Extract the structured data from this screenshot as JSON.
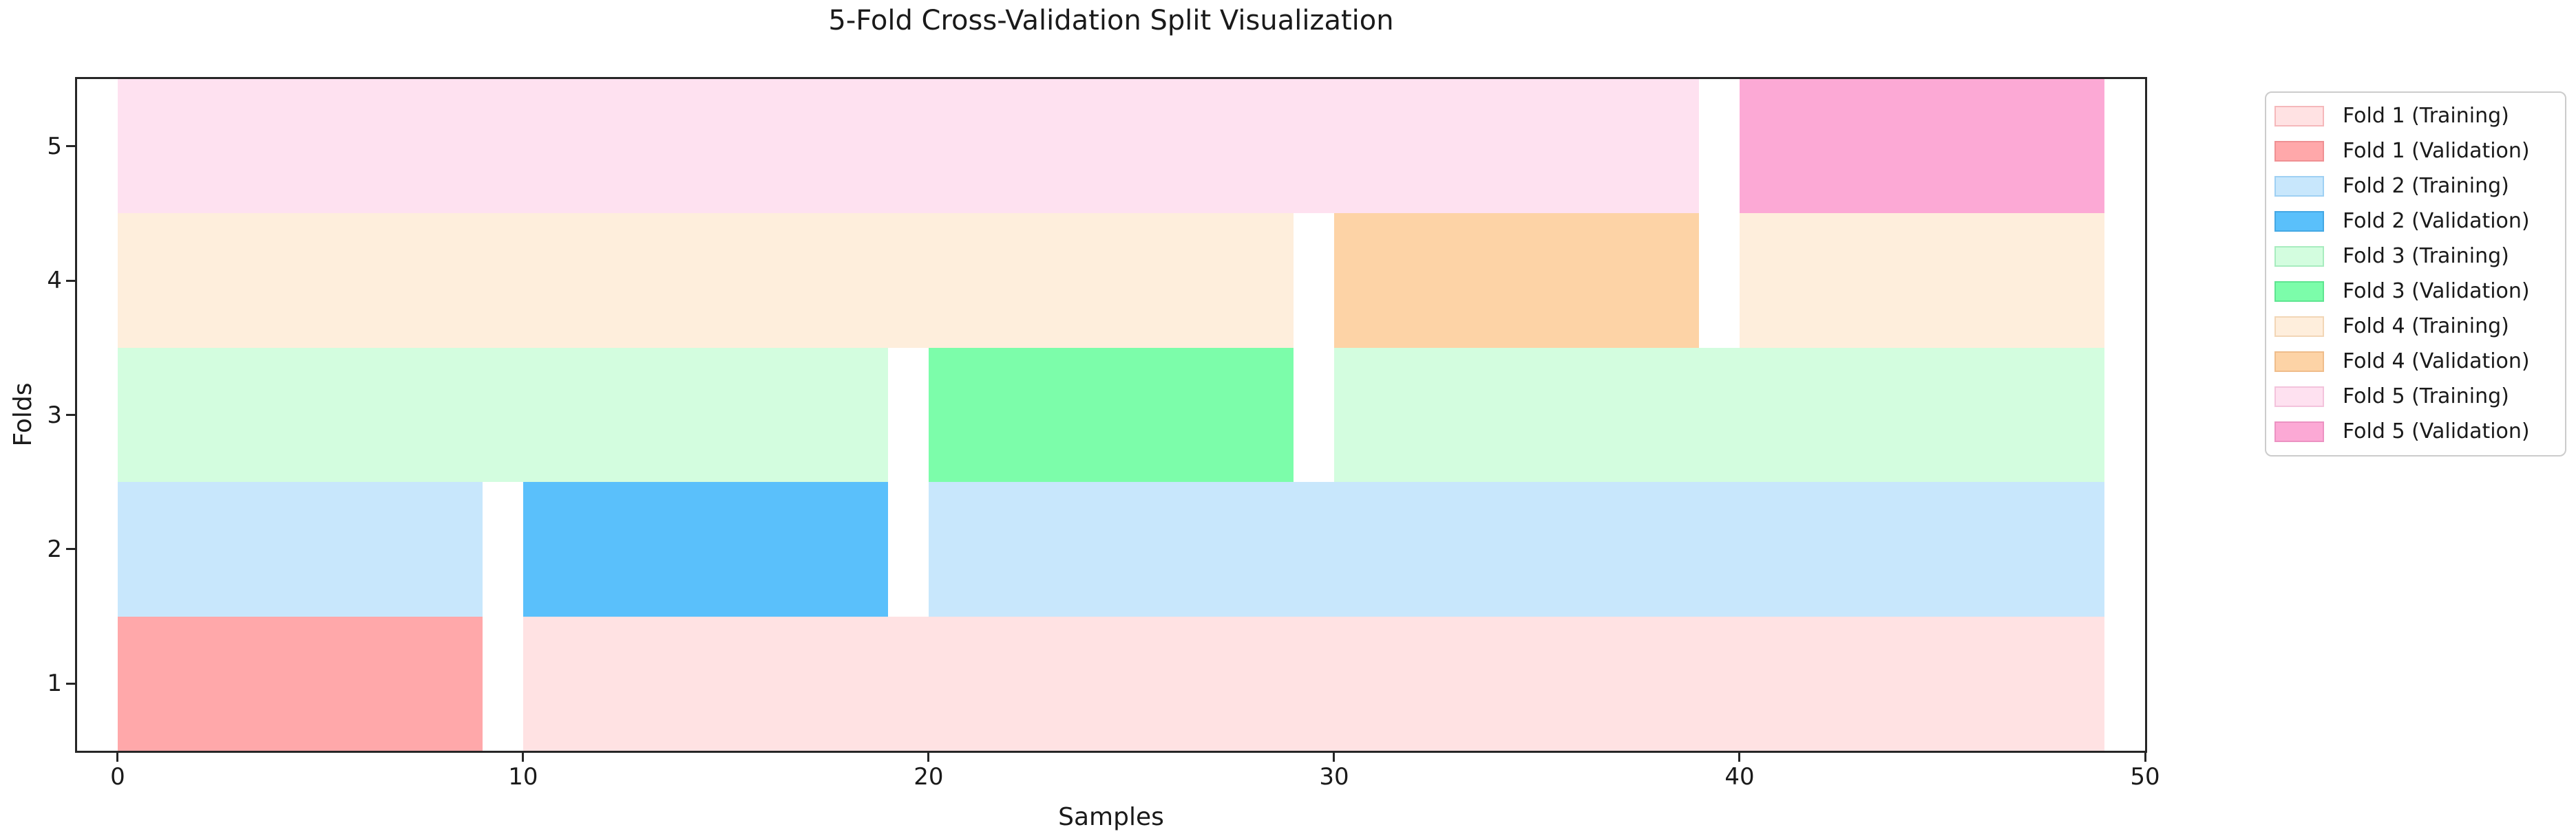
{
  "chart_data": {
    "type": "bar",
    "variant": "horizontal-cross-validation-split",
    "title": "5-Fold Cross-Validation Split Visualization",
    "xlabel": "Samples",
    "ylabel": "Folds",
    "n_samples": 50,
    "n_folds": 5,
    "fold_size": 10,
    "xlim": [
      -1,
      50
    ],
    "ylim": [
      0.5,
      5.5
    ],
    "x_ticks": [
      0,
      10,
      20,
      30,
      40,
      50
    ],
    "y_ticks": [
      1,
      2,
      3,
      4,
      5
    ],
    "grid": false,
    "background": "#ffffff",
    "axis_color": "#262626",
    "text_color": "#1a1a1a",
    "legend_position": "outside-right-top",
    "legend_border_color": "#cccccc",
    "folds": [
      {
        "fold": 1,
        "validation_samples": [
          0,
          9
        ],
        "train_color": "#FFE2E3",
        "val_color": "#FFA8AA",
        "segments": [
          {
            "role": "validation",
            "start": 0,
            "end": 9
          },
          {
            "role": "training",
            "start": 10,
            "end": 49
          }
        ]
      },
      {
        "fold": 2,
        "validation_samples": [
          10,
          19
        ],
        "train_color": "#C8E7FC",
        "val_color": "#5AC0FB",
        "segments": [
          {
            "role": "training",
            "start": 0,
            "end": 9
          },
          {
            "role": "validation",
            "start": 10,
            "end": 19
          },
          {
            "role": "training",
            "start": 20,
            "end": 49
          }
        ]
      },
      {
        "fold": 3,
        "validation_samples": [
          20,
          29
        ],
        "train_color": "#D3FDDF",
        "val_color": "#7CFDAA",
        "segments": [
          {
            "role": "training",
            "start": 0,
            "end": 19
          },
          {
            "role": "validation",
            "start": 20,
            "end": 29
          },
          {
            "role": "training",
            "start": 30,
            "end": 49
          }
        ]
      },
      {
        "fold": 4,
        "validation_samples": [
          30,
          39
        ],
        "train_color": "#FEEEDC",
        "val_color": "#FDD3A6",
        "segments": [
          {
            "role": "training",
            "start": 0,
            "end": 29
          },
          {
            "role": "validation",
            "start": 30,
            "end": 39
          },
          {
            "role": "training",
            "start": 40,
            "end": 49
          }
        ]
      },
      {
        "fold": 5,
        "validation_samples": [
          40,
          49
        ],
        "train_color": "#FEE1F0",
        "val_color": "#FCA9D5",
        "segments": [
          {
            "role": "training",
            "start": 0,
            "end": 39
          },
          {
            "role": "validation",
            "start": 40,
            "end": 49
          }
        ]
      }
    ],
    "legend": [
      {
        "label": "Fold 1 (Training)",
        "color": "#FFE2E3",
        "edge": "#F5B8BB"
      },
      {
        "label": "Fold 1 (Validation)",
        "color": "#FFA8AA",
        "edge": "#EF9093"
      },
      {
        "label": "Fold 2 (Training)",
        "color": "#C8E7FC",
        "edge": "#9FD0F3"
      },
      {
        "label": "Fold 2 (Validation)",
        "color": "#5AC0FB",
        "edge": "#45A8E4"
      },
      {
        "label": "Fold 3 (Training)",
        "color": "#D3FDDF",
        "edge": "#A8ECBF"
      },
      {
        "label": "Fold 3 (Validation)",
        "color": "#7CFDAA",
        "edge": "#5FE591"
      },
      {
        "label": "Fold 4 (Training)",
        "color": "#FEEEDC",
        "edge": "#F2D6B6"
      },
      {
        "label": "Fold 4 (Validation)",
        "color": "#FDD3A6",
        "edge": "#EFBD8B"
      },
      {
        "label": "Fold 5 (Training)",
        "color": "#FEE1F0",
        "edge": "#F3C3DC"
      },
      {
        "label": "Fold 5 (Validation)",
        "color": "#FCA9D5",
        "edge": "#EC92C2"
      }
    ]
  }
}
